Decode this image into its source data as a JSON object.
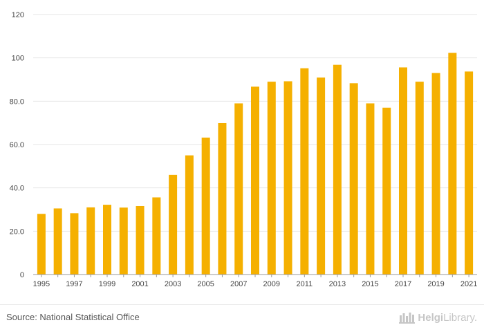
{
  "chart_data": {
    "type": "bar",
    "title": "",
    "xlabel": "",
    "ylabel": "",
    "ylim": [
      0,
      120
    ],
    "y_ticks": [
      0,
      20,
      40,
      60,
      80,
      100,
      120
    ],
    "y_tick_labels": [
      "0",
      "20.0",
      "40.0",
      "60.0",
      "80.0",
      "100",
      "120"
    ],
    "categories": [
      "1995",
      "1996",
      "1997",
      "1998",
      "1999",
      "2000",
      "2001",
      "2002",
      "2003",
      "2004",
      "2005",
      "2006",
      "2007",
      "2008",
      "2009",
      "2010",
      "2011",
      "2012",
      "2013",
      "2014",
      "2015",
      "2016",
      "2017",
      "2018",
      "2019",
      "2020",
      "2021"
    ],
    "x_tick_labels": [
      "1995",
      "",
      "1997",
      "",
      "1999",
      "",
      "2001",
      "",
      "2003",
      "",
      "2005",
      "",
      "2007",
      "",
      "2009",
      "",
      "2011",
      "",
      "2013",
      "",
      "2015",
      "",
      "2017",
      "",
      "2019",
      "",
      "2021"
    ],
    "values": [
      28.0,
      30.5,
      28.3,
      31.0,
      32.2,
      30.9,
      31.6,
      35.6,
      46.0,
      55.0,
      63.2,
      69.9,
      79.0,
      86.7,
      89.0,
      89.2,
      95.2,
      90.9,
      96.8,
      88.3,
      79.0,
      77.0,
      95.6,
      89.0,
      93.0,
      102.3,
      93.7
    ],
    "bar_color": "#f5b000",
    "grid": true
  },
  "footer": {
    "source": "Source: National Statistical Office",
    "brand_bold": "Helgi",
    "brand_rest": "Library."
  }
}
